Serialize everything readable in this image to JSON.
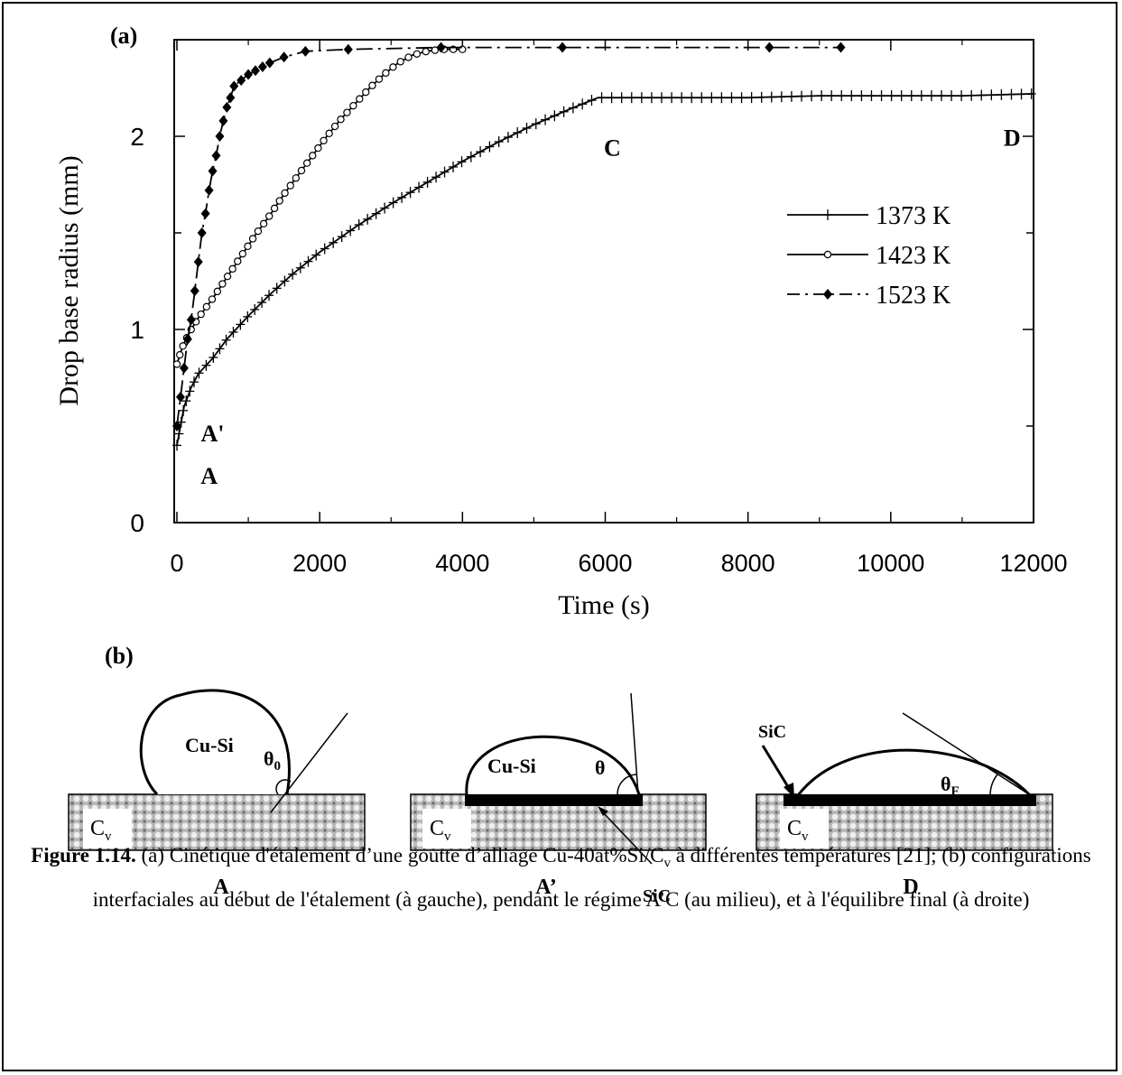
{
  "panel_a_label": "(a)",
  "panel_b_label": "(b)",
  "chart_data": {
    "type": "line",
    "title": "",
    "xlabel": "Time (s)",
    "ylabel": "Drop base radius (mm)",
    "xlim": [
      0,
      12000
    ],
    "ylim": [
      0,
      2.5
    ],
    "xticks": [
      0,
      2000,
      4000,
      6000,
      8000,
      10000,
      12000
    ],
    "xtick_labels": [
      "0",
      "2000",
      "4000",
      "6000",
      "8000",
      "10000",
      "12000"
    ],
    "yticks": [
      0,
      1,
      2
    ],
    "ytick_labels": [
      "0",
      "1",
      "2"
    ],
    "grid": false,
    "legend_position": "center-right",
    "series": [
      {
        "name": "1373 K",
        "marker": "plus",
        "line": "solid",
        "x": [
          0,
          50,
          100,
          200,
          300,
          500,
          700,
          1000,
          1300,
          1600,
          2000,
          2500,
          3000,
          3500,
          4000,
          4500,
          5000,
          5500,
          5900,
          6500,
          7000,
          8000,
          9000,
          10000,
          11000,
          12000
        ],
        "y": [
          0.4,
          0.5,
          0.6,
          0.7,
          0.77,
          0.85,
          0.95,
          1.07,
          1.18,
          1.28,
          1.4,
          1.53,
          1.65,
          1.76,
          1.87,
          1.97,
          2.06,
          2.14,
          2.2,
          2.2,
          2.2,
          2.2,
          2.21,
          2.21,
          2.21,
          2.22
        ]
      },
      {
        "name": "1423 K",
        "marker": "open-circle",
        "line": "solid",
        "x": [
          0,
          50,
          100,
          200,
          300,
          400,
          500,
          700,
          900,
          1100,
          1300,
          1500,
          1700,
          1900,
          2100,
          2300,
          2500,
          2700,
          2900,
          3100,
          3300,
          3500,
          3700,
          3900,
          4050
        ],
        "y": [
          0.82,
          0.88,
          0.93,
          1.0,
          1.06,
          1.11,
          1.16,
          1.27,
          1.38,
          1.49,
          1.59,
          1.7,
          1.8,
          1.9,
          2.0,
          2.09,
          2.17,
          2.25,
          2.32,
          2.38,
          2.42,
          2.44,
          2.45,
          2.45,
          2.45
        ]
      },
      {
        "name": "1523 K",
        "marker": "filled-diamond",
        "line": "dash-dot",
        "x": [
          0,
          50,
          100,
          150,
          200,
          250,
          300,
          350,
          400,
          450,
          500,
          550,
          600,
          650,
          700,
          750,
          800,
          900,
          1000,
          1100,
          1200,
          1300,
          1500,
          1800,
          2400,
          3700,
          5400,
          8300,
          9300
        ],
        "y": [
          0.5,
          0.65,
          0.8,
          0.95,
          1.05,
          1.2,
          1.35,
          1.5,
          1.6,
          1.72,
          1.82,
          1.9,
          2.0,
          2.08,
          2.15,
          2.2,
          2.26,
          2.29,
          2.32,
          2.34,
          2.36,
          2.38,
          2.41,
          2.44,
          2.45,
          2.46,
          2.46,
          2.46,
          2.46
        ]
      }
    ],
    "annotations": [
      {
        "text": "A'",
        "x": 500,
        "y": 0.42
      },
      {
        "text": "A",
        "x": 450,
        "y": 0.2
      },
      {
        "text": "C",
        "x": 6100,
        "y": 1.9
      },
      {
        "text": "D",
        "x": 11700,
        "y": 1.95
      }
    ]
  },
  "schematics": [
    {
      "config_label": "A",
      "drop_label": "Cu-Si",
      "angle_symbol": "θ",
      "angle_subscript": "0",
      "substrate_label": "C",
      "substrate_subscript": "v"
    },
    {
      "config_label": "A’",
      "drop_label": "Cu-Si",
      "angle_symbol": "θ",
      "angle_subscript": "",
      "substrate_label": "C",
      "substrate_subscript": "v",
      "interface_label": "SiC"
    },
    {
      "config_label": "D",
      "drop_label": "",
      "angle_symbol": "θ",
      "angle_subscript": "F",
      "substrate_label": "C",
      "substrate_subscript": "v",
      "interface_label": "SiC"
    }
  ],
  "caption": {
    "figure_label": "Figure 1.14.",
    "part1": " (a) Cinétique d'étalement d’une goutte d’alliage Cu-40at%Si/C",
    "sub_v": "v",
    "part2": " à différentes températures [21]; (b) configurations interfaciales au début de l'étalement (à gauche), pendant le régime A’C (au milieu), et à l'équilibre final (à droite)"
  }
}
